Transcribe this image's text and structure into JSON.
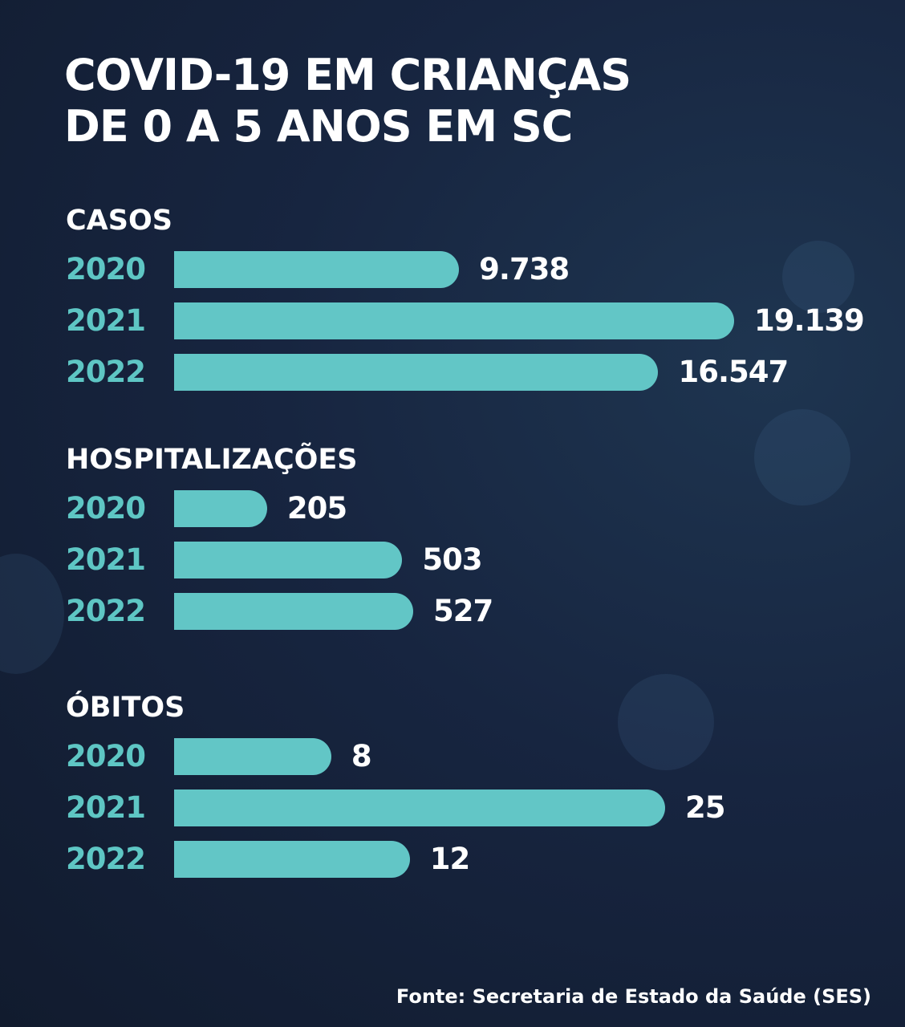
{
  "title_line1": "COVID-19 EM CRIANÇAS",
  "title_line2": "DE 0 A 5 ANOS EM SC",
  "source": "Fonte: Secretaria de Estado da Saúde (SES)",
  "colors": {
    "bar": "#62c6c6",
    "year": "#5ec6c4",
    "background": "#172540"
  },
  "chart_data": [
    {
      "type": "bar",
      "title": "CASOS",
      "categories": [
        "2020",
        "2021",
        "2022"
      ],
      "values": [
        9738,
        19139,
        16547
      ],
      "labels": [
        "9.738",
        "19.139",
        "16.547"
      ]
    },
    {
      "type": "bar",
      "title": "HOSPITALIZAÇÕES",
      "categories": [
        "2020",
        "2021",
        "2022"
      ],
      "values": [
        205,
        503,
        527
      ],
      "labels": [
        "205",
        "503",
        "527"
      ]
    },
    {
      "type": "bar",
      "title": "ÓBITOS",
      "categories": [
        "2020",
        "2021",
        "2022"
      ],
      "values": [
        8,
        25,
        12
      ],
      "labels": [
        "8",
        "25",
        "12"
      ]
    }
  ]
}
